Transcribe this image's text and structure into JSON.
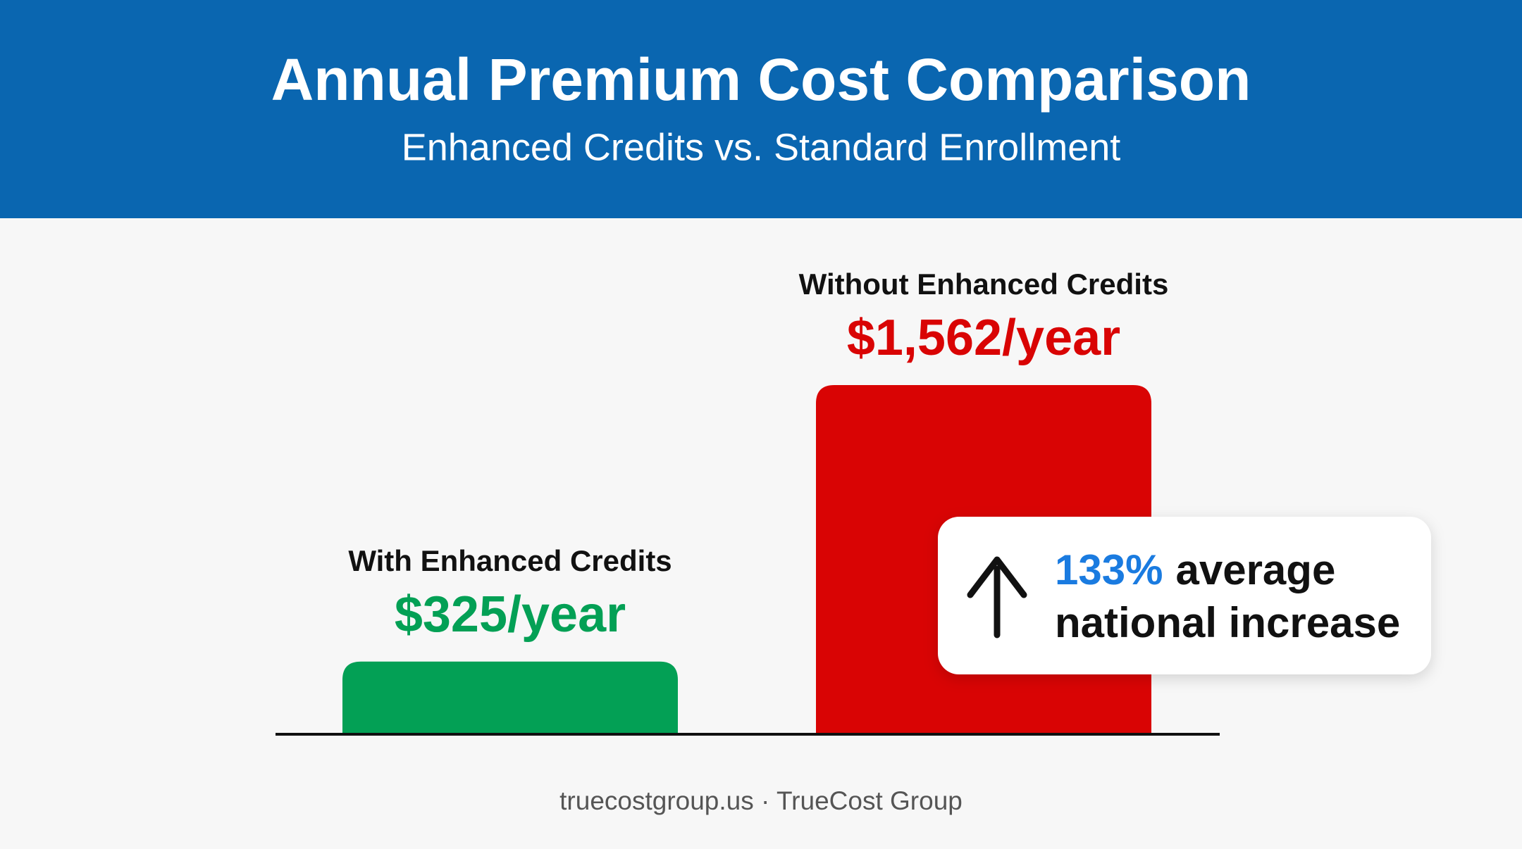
{
  "chart_data": {
    "type": "bar",
    "title": "Annual Premium Cost Comparison",
    "subtitle": "Enhanced Credits vs. Standard Enrollment",
    "categories": [
      "With Enhanced Credits",
      "Without Enhanced Credits"
    ],
    "values": [
      325,
      1562
    ],
    "value_labels": [
      "$325/year",
      "$1,562/year"
    ],
    "colors": [
      "#03a055",
      "#d90404"
    ],
    "annotation": {
      "highlight": "133%",
      "lines": [
        "average",
        "national increase"
      ]
    },
    "footer": "truecostgroup.us · TrueCost Group"
  }
}
